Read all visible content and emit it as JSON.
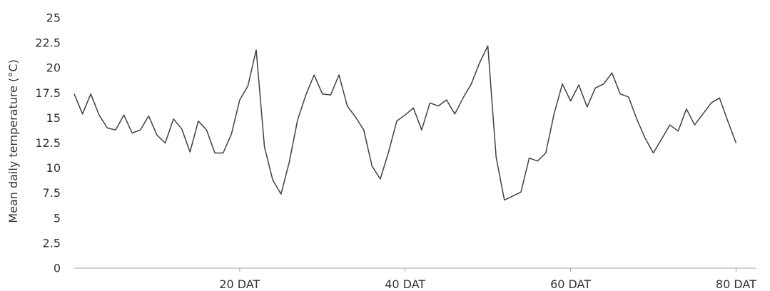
{
  "chart_data": {
    "type": "line",
    "title": "",
    "xlabel": "",
    "ylabel": "Mean daily temperature (°C)",
    "ylim": [
      0,
      25
    ],
    "xlim": [
      0,
      81
    ],
    "y_ticks": [
      "0",
      "2.5",
      "5",
      "7.5",
      "10",
      "12.5",
      "15",
      "17.5",
      "20",
      "22.5",
      "25"
    ],
    "x_ticks": [
      {
        "x": 20,
        "label": "20 DAT"
      },
      {
        "x": 40,
        "label": "40 DAT"
      },
      {
        "x": 60,
        "label": "60 DAT"
      },
      {
        "x": 80,
        "label": "80 DAT"
      }
    ],
    "grid": false,
    "series": [
      {
        "x": [
          0,
          1,
          2,
          3,
          4,
          5,
          6,
          7,
          8,
          9,
          10,
          11,
          12,
          13,
          14,
          15,
          16,
          17,
          18,
          19,
          20,
          21,
          22,
          23,
          24,
          25,
          26,
          27,
          28,
          29,
          30,
          31,
          32,
          33,
          34,
          35,
          36,
          37,
          38,
          39,
          40,
          41,
          42,
          43,
          44,
          45,
          46,
          47,
          48,
          49,
          50,
          51,
          52,
          53,
          54,
          55,
          56,
          57,
          58,
          59,
          60,
          61,
          62,
          63,
          64,
          65,
          66,
          67,
          68,
          69,
          70,
          71,
          72,
          73,
          74,
          75,
          76,
          77,
          78,
          79,
          80
        ],
        "values": [
          17.4,
          15.4,
          17.4,
          15.3,
          14.0,
          13.8,
          15.3,
          13.5,
          13.8,
          15.2,
          13.3,
          12.5,
          14.9,
          13.9,
          11.6,
          14.7,
          13.8,
          11.5,
          11.5,
          13.4,
          16.8,
          18.2,
          21.8,
          12.1,
          8.8,
          7.4,
          10.6,
          14.8,
          17.3,
          19.3,
          17.4,
          17.3,
          19.3,
          16.2,
          15.1,
          13.8,
          10.2,
          8.9,
          11.6,
          14.7,
          15.3,
          16.0,
          13.8,
          16.5,
          16.2,
          16.8,
          15.4,
          17.0,
          18.4,
          20.5,
          22.2,
          11.1,
          6.8,
          7.2,
          7.6,
          11.0,
          10.7,
          11.5,
          15.4,
          18.4,
          16.7,
          18.3,
          16.1,
          18.0,
          18.4,
          19.5,
          17.4,
          17.1,
          14.9,
          13.0,
          11.5,
          12.9,
          14.3,
          13.7,
          15.9,
          14.3,
          15.4,
          16.5,
          17.0,
          14.7,
          12.5
        ]
      }
    ]
  },
  "style": {
    "line_color": "#404040",
    "axis_color": "#a6a6a6",
    "text_color": "#333333"
  }
}
